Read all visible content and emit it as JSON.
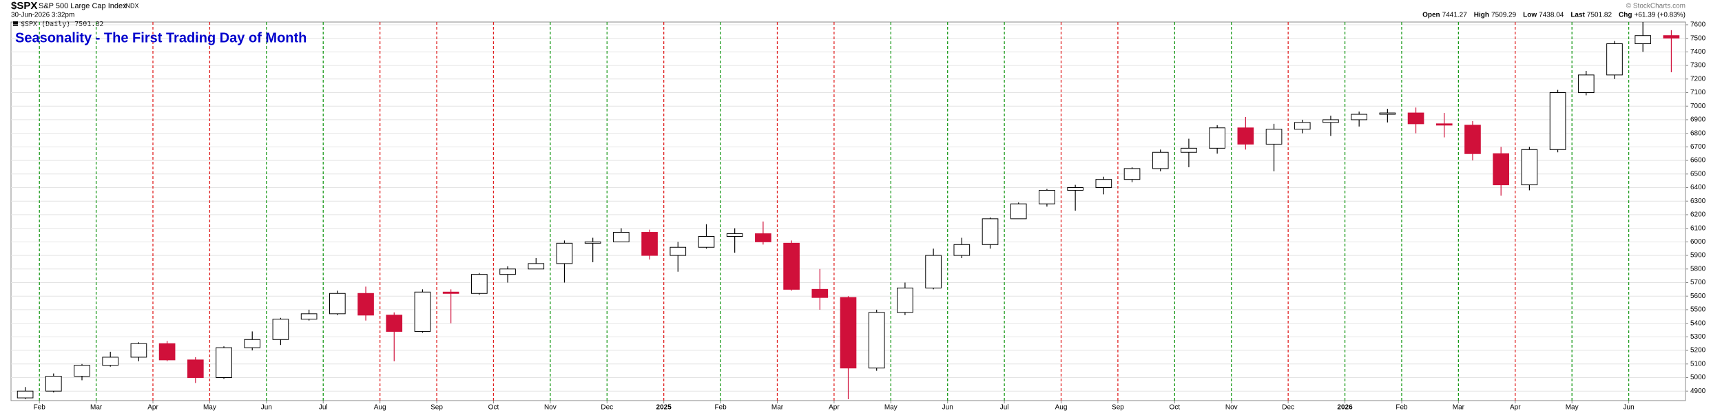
{
  "header": {
    "symbol": "$SPX",
    "name": "S&P 500 Large Cap Index",
    "exchange": "INDX",
    "timestamp": "30-Jun-2026 3:32pm",
    "legend": "$SPX (Daily) 7501.82",
    "copyright": "© StockCharts.com",
    "stats": [
      {
        "label": "Open",
        "value": "7441.27"
      },
      {
        "label": "High",
        "value": "7509.29"
      },
      {
        "label": "Low",
        "value": "7438.04"
      },
      {
        "label": "Last",
        "value": "7501.82"
      },
      {
        "label": "Chg",
        "value": "+61.39 (+0.83%)"
      }
    ]
  },
  "chart_data": {
    "type": "candlestick",
    "title": "Seasonality - The First Trading Day of Month",
    "up_color": "#000000",
    "down_color": "#d0103a",
    "title_color": "#0000cc",
    "grid": true,
    "xlim": [
      0,
      59
    ],
    "ylim": [
      4830,
      7620
    ],
    "yticks": [
      4900,
      5000,
      5100,
      5200,
      5300,
      5400,
      5500,
      5600,
      5700,
      5800,
      5900,
      6000,
      6100,
      6200,
      6300,
      6400,
      6500,
      6600,
      6700,
      6800,
      6900,
      7000,
      7100,
      7200,
      7300,
      7400,
      7500,
      7600
    ],
    "xticks": [
      {
        "value": 1,
        "label": "Feb"
      },
      {
        "value": 3,
        "label": "Mar"
      },
      {
        "value": 5,
        "label": "Apr"
      },
      {
        "value": 7,
        "label": "May"
      },
      {
        "value": 9,
        "label": "Jun"
      },
      {
        "value": 11,
        "label": "Jul"
      },
      {
        "value": 13,
        "label": "Aug"
      },
      {
        "value": 15,
        "label": "Sep"
      },
      {
        "value": 17,
        "label": "Oct"
      },
      {
        "value": 19,
        "label": "Nov"
      },
      {
        "value": 21,
        "label": "Dec"
      },
      {
        "value": 23,
        "label": "2025"
      },
      {
        "value": 25,
        "label": "Feb"
      },
      {
        "value": 27,
        "label": "Mar"
      },
      {
        "value": 29,
        "label": "Apr"
      },
      {
        "value": 31,
        "label": "May"
      },
      {
        "value": 33,
        "label": "Jun"
      },
      {
        "value": 35,
        "label": "Jul"
      },
      {
        "value": 37,
        "label": "Aug"
      },
      {
        "value": 39,
        "label": "Sep"
      },
      {
        "value": 41,
        "label": "Oct"
      },
      {
        "value": 43,
        "label": "Nov"
      },
      {
        "value": 45,
        "label": "Dec"
      },
      {
        "value": 47,
        "label": "2026"
      },
      {
        "value": 49,
        "label": "Feb"
      },
      {
        "value": 51,
        "label": "Mar"
      },
      {
        "value": 53,
        "label": "Apr"
      },
      {
        "value": 55,
        "label": "May"
      },
      {
        "value": 57,
        "label": "Jun"
      }
    ],
    "xtick_colors": [
      "#1a9a1a",
      "#1a9a1a",
      "#e02020",
      "#e02020",
      "#1a9a1a",
      "#1a9a1a",
      "#e02020",
      "#e02020",
      "#e02020",
      "#1a9a1a",
      "#1a9a1a",
      "#e02020",
      "#1a9a1a",
      "#e02020",
      "#e02020",
      "#1a9a1a",
      "#1a9a1a",
      "#1a9a1a",
      "#e02020",
      "#e02020",
      "#1a9a1a",
      "#1a9a1a",
      "#e02020",
      "#1a9a1a",
      "#1a9a1a",
      "#1a9a1a",
      "#e02020",
      "#1a9a1a",
      "#1a9a1a"
    ],
    "open": [
      4850,
      4900,
      5010,
      5090,
      5150,
      5250,
      5130,
      5000,
      5220,
      5280,
      5430,
      5470,
      5620,
      5460,
      5340,
      5630,
      5620,
      5760,
      5800,
      5840,
      5990,
      6000,
      6070,
      5900,
      5960,
      6040,
      6060,
      5990,
      5650,
      5590,
      5070,
      5480,
      5660,
      5900,
      5980,
      6170,
      6280,
      6380,
      6400,
      6460,
      6540,
      6660,
      6690,
      6840,
      6720,
      6830,
      6880,
      6900,
      6940,
      6950,
      6870,
      6860,
      6650,
      6420,
      6680,
      7100,
      7230,
      7460,
      7520
    ],
    "high": [
      4930,
      5030,
      5100,
      5190,
      5260,
      5270,
      5150,
      5230,
      5340,
      5440,
      5500,
      5640,
      5670,
      5480,
      5650,
      5650,
      5770,
      5820,
      5880,
      6010,
      6030,
      6100,
      6090,
      6000,
      6130,
      6100,
      6150,
      6010,
      5800,
      5600,
      5500,
      5700,
      5950,
      6030,
      6180,
      6290,
      6390,
      6420,
      6480,
      6550,
      6680,
      6760,
      6860,
      6920,
      6870,
      6900,
      6930,
      6960,
      6980,
      6990,
      6950,
      6890,
      6700,
      6700,
      7120,
      7260,
      7480,
      7620,
      7560
    ],
    "low": [
      4840,
      4890,
      4980,
      5080,
      5120,
      5120,
      4960,
      4990,
      5200,
      5240,
      5420,
      5460,
      5420,
      5120,
      5330,
      5400,
      5610,
      5700,
      5800,
      5700,
      5850,
      6010,
      5870,
      5780,
      5950,
      5920,
      5980,
      5640,
      5500,
      4840,
      5050,
      5460,
      5650,
      5880,
      5950,
      6170,
      6260,
      6230,
      6350,
      6440,
      6520,
      6550,
      6650,
      6680,
      6520,
      6800,
      6780,
      6850,
      6880,
      6800,
      6770,
      6600,
      6340,
      6380,
      6660,
      7080,
      7200,
      7400,
      7250
    ],
    "close": [
      4900,
      5010,
      5090,
      5150,
      5250,
      5130,
      5000,
      5220,
      5280,
      5430,
      5470,
      5620,
      5460,
      5340,
      5630,
      5620,
      5760,
      5800,
      5840,
      5990,
      6000,
      6070,
      5900,
      5960,
      6040,
      6060,
      6000,
      5650,
      5590,
      5070,
      5480,
      5660,
      5900,
      5980,
      6170,
      6280,
      6380,
      6400,
      6460,
      6540,
      6660,
      6690,
      6840,
      6720,
      6830,
      6880,
      6900,
      6940,
      6950,
      6870,
      6860,
      6650,
      6420,
      6680,
      7100,
      7230,
      7460,
      7520,
      7501.82
    ]
  }
}
